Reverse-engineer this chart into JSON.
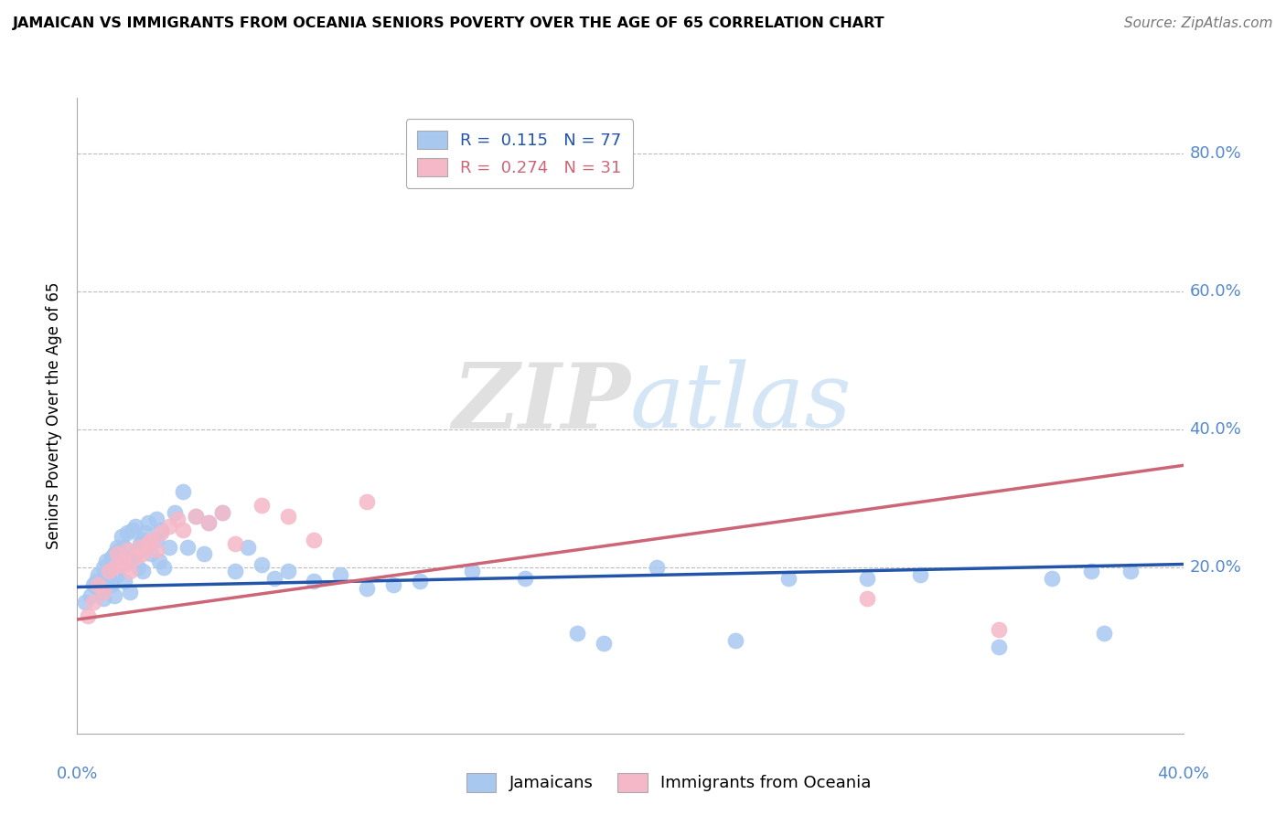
{
  "title": "JAMAICAN VS IMMIGRANTS FROM OCEANIA SENIORS POVERTY OVER THE AGE OF 65 CORRELATION CHART",
  "source": "Source: ZipAtlas.com",
  "ylabel": "Seniors Poverty Over the Age of 65",
  "ytick_values": [
    0.2,
    0.4,
    0.6,
    0.8
  ],
  "ytick_labels": [
    "20.0%",
    "40.0%",
    "60.0%",
    "80.0%"
  ],
  "xlim": [
    0.0,
    0.42
  ],
  "ylim": [
    -0.04,
    0.88
  ],
  "blue_color": "#A8C8F0",
  "pink_color": "#F5B8C8",
  "blue_line_color": "#2255AA",
  "pink_line_color": "#CC6677",
  "tick_color": "#5588CC",
  "watermark_color": "#DDDDEE",
  "blue_line_y0": 0.172,
  "blue_line_y1": 0.205,
  "pink_line_y0": 0.125,
  "pink_line_y1": 0.348,
  "jamaicans_x": [
    0.003,
    0.005,
    0.006,
    0.007,
    0.008,
    0.008,
    0.009,
    0.01,
    0.01,
    0.011,
    0.012,
    0.012,
    0.013,
    0.013,
    0.014,
    0.014,
    0.015,
    0.015,
    0.015,
    0.016,
    0.016,
    0.017,
    0.017,
    0.018,
    0.018,
    0.018,
    0.019,
    0.02,
    0.02,
    0.021,
    0.022,
    0.022,
    0.023,
    0.023,
    0.024,
    0.025,
    0.025,
    0.026,
    0.027,
    0.028,
    0.03,
    0.03,
    0.031,
    0.032,
    0.033,
    0.035,
    0.037,
    0.04,
    0.042,
    0.045,
    0.048,
    0.05,
    0.055,
    0.06,
    0.065,
    0.07,
    0.075,
    0.08,
    0.09,
    0.1,
    0.11,
    0.12,
    0.13,
    0.15,
    0.17,
    0.19,
    0.2,
    0.22,
    0.25,
    0.27,
    0.3,
    0.32,
    0.35,
    0.37,
    0.385,
    0.39,
    0.4
  ],
  "jamaicans_y": [
    0.15,
    0.16,
    0.175,
    0.18,
    0.17,
    0.19,
    0.165,
    0.155,
    0.2,
    0.21,
    0.185,
    0.195,
    0.175,
    0.215,
    0.16,
    0.22,
    0.2,
    0.23,
    0.19,
    0.21,
    0.225,
    0.205,
    0.245,
    0.215,
    0.23,
    0.18,
    0.25,
    0.165,
    0.215,
    0.255,
    0.22,
    0.26,
    0.225,
    0.2,
    0.235,
    0.24,
    0.195,
    0.25,
    0.265,
    0.22,
    0.24,
    0.27,
    0.21,
    0.255,
    0.2,
    0.23,
    0.28,
    0.31,
    0.23,
    0.275,
    0.22,
    0.265,
    0.28,
    0.195,
    0.23,
    0.205,
    0.185,
    0.195,
    0.18,
    0.19,
    0.17,
    0.175,
    0.18,
    0.195,
    0.185,
    0.105,
    0.09,
    0.2,
    0.095,
    0.185,
    0.185,
    0.19,
    0.085,
    0.185,
    0.195,
    0.105,
    0.195
  ],
  "oceania_x": [
    0.004,
    0.006,
    0.008,
    0.01,
    0.012,
    0.014,
    0.015,
    0.017,
    0.018,
    0.019,
    0.02,
    0.022,
    0.024,
    0.025,
    0.027,
    0.028,
    0.03,
    0.032,
    0.035,
    0.038,
    0.04,
    0.045,
    0.05,
    0.055,
    0.06,
    0.07,
    0.08,
    0.09,
    0.11,
    0.3,
    0.35
  ],
  "oceania_y": [
    0.13,
    0.15,
    0.175,
    0.165,
    0.195,
    0.2,
    0.22,
    0.21,
    0.205,
    0.225,
    0.195,
    0.215,
    0.23,
    0.22,
    0.235,
    0.24,
    0.225,
    0.25,
    0.26,
    0.27,
    0.255,
    0.275,
    0.265,
    0.28,
    0.235,
    0.29,
    0.275,
    0.24,
    0.295,
    0.155,
    0.11
  ]
}
